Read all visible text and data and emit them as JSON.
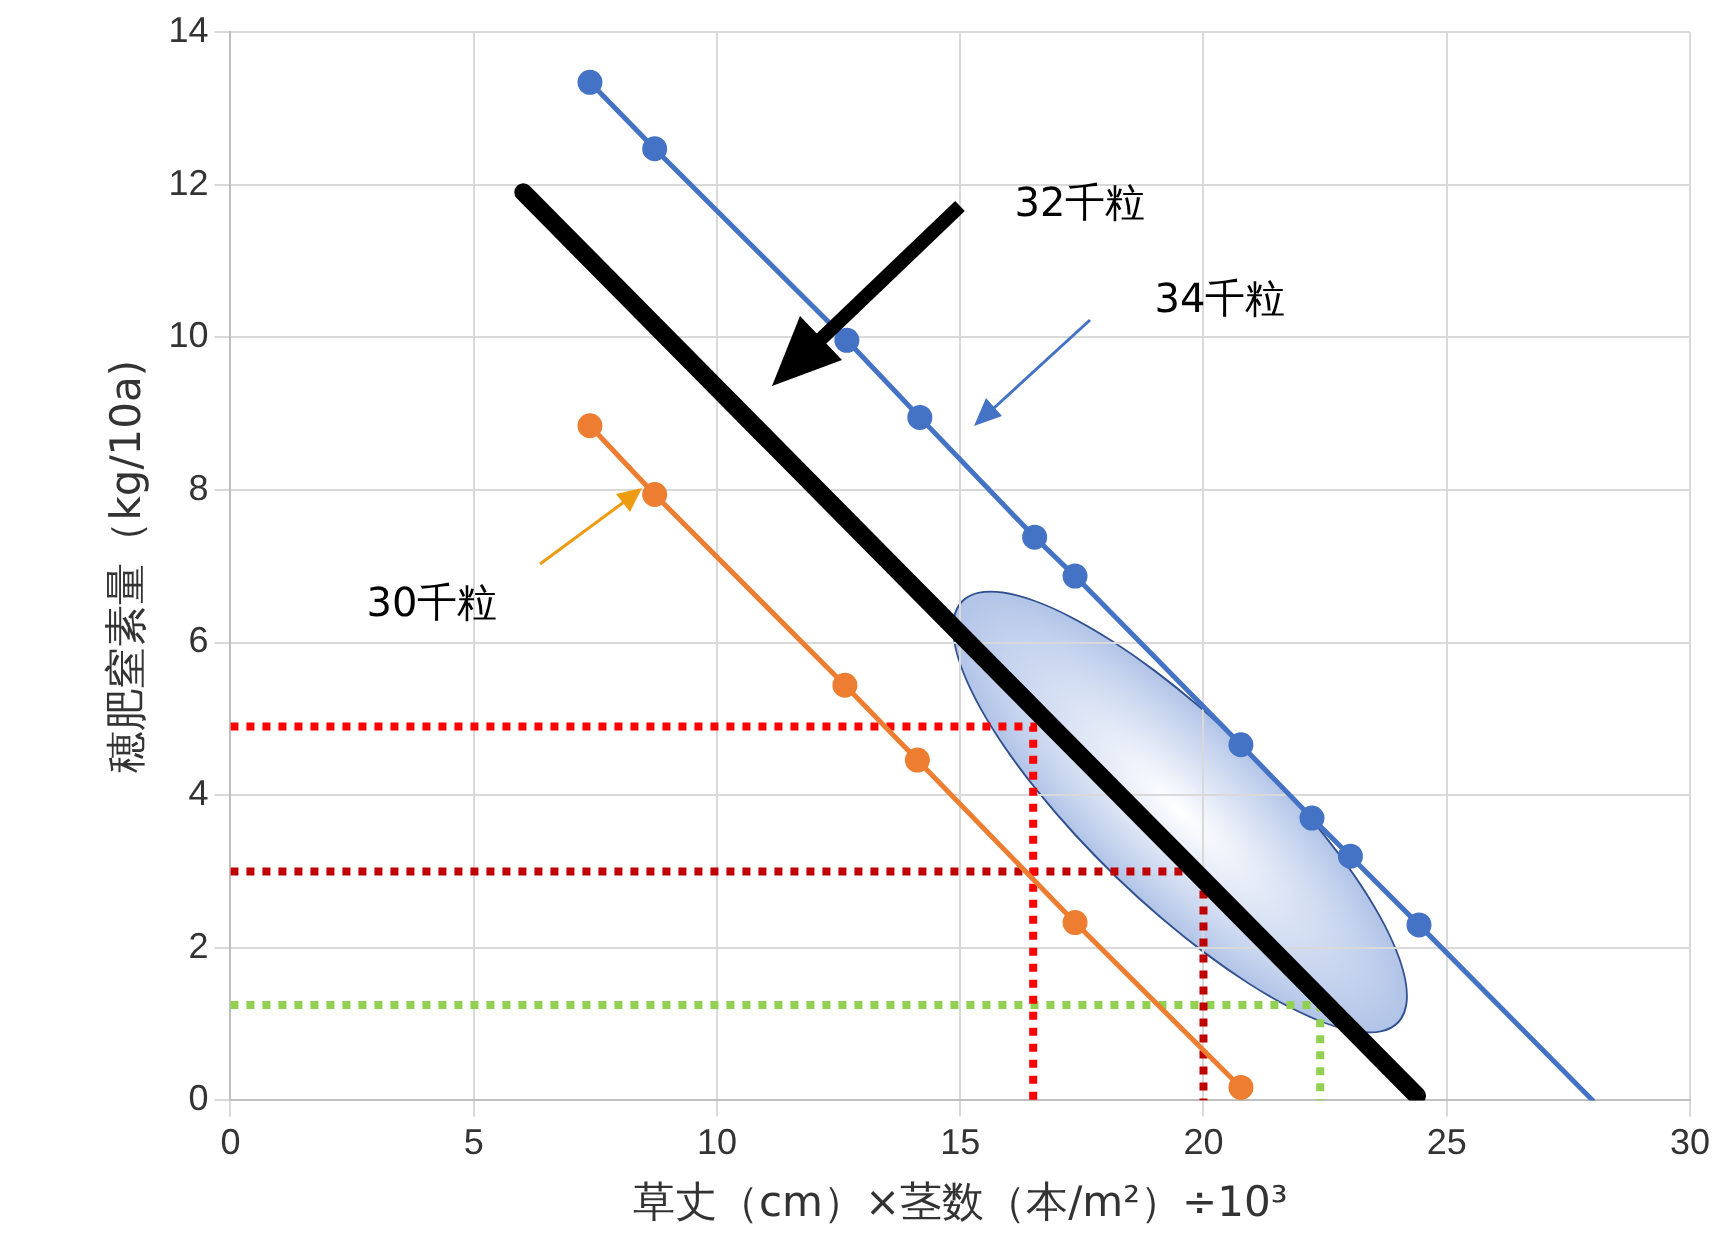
{
  "chart_data": {
    "type": "line",
    "xlabel": "草丈（cm）×茎数（本/m²）÷10³",
    "ylabel": "穂肥窒素量（kg/10a)",
    "xlim": [
      0,
      30
    ],
    "xticks": [
      0,
      5,
      10,
      15,
      20,
      25,
      30
    ],
    "ylim": [
      0,
      14
    ],
    "yticks": [
      0,
      2,
      4,
      6,
      8,
      10,
      12,
      14
    ],
    "grid": true,
    "legend": false,
    "series": [
      {
        "type": "line",
        "color": "#4472c4",
        "marker": "circle",
        "line_style": "solid",
        "x": [
          7.39,
          8.72,
          12.67,
          14.17,
          16.53,
          17.36,
          20.77,
          22.23,
          23.02,
          24.43
        ],
        "values": [
          13.34,
          12.47,
          9.96,
          8.95,
          7.38,
          6.87,
          4.66,
          3.7,
          3.2,
          2.3
        ]
      },
      {
        "type": "line",
        "color": "#4472c4",
        "marker": "none",
        "line_style": "solid",
        "x": [
          24.43,
          28
        ],
        "values": [
          2.3,
          0
        ]
      },
      {
        "type": "line",
        "color": "#ed7d31",
        "marker": "circle",
        "line_style": "solid",
        "x": [
          7.39,
          8.72,
          12.63,
          14.12,
          17.36,
          20.77
        ],
        "values": [
          8.84,
          7.94,
          5.44,
          4.46,
          2.33,
          0.17
        ]
      },
      {
        "type": "line",
        "color": "#000000",
        "marker": "none",
        "line_style": "solid",
        "x": [
          6.02,
          24.39
        ],
        "values": [
          11.9,
          0.06
        ]
      },
      {
        "type": "line",
        "color": "#ff0000",
        "marker": "none",
        "line_style": "dotted",
        "x": [
          0,
          16.5,
          16.5
        ],
        "values": [
          4.9,
          4.9,
          0
        ]
      },
      {
        "type": "line",
        "color": "#c00000",
        "marker": "none",
        "line_style": "dotted",
        "x": [
          0,
          20,
          20
        ],
        "values": [
          3,
          3,
          0
        ]
      },
      {
        "type": "line",
        "color": "#92d050",
        "marker": "none",
        "line_style": "dotted",
        "x": [
          0,
          22.4,
          22.4
        ],
        "values": [
          1.25,
          1.25,
          0
        ]
      }
    ],
    "annotations": [
      "32千粒",
      "34千粒",
      "30千粒"
    ]
  }
}
